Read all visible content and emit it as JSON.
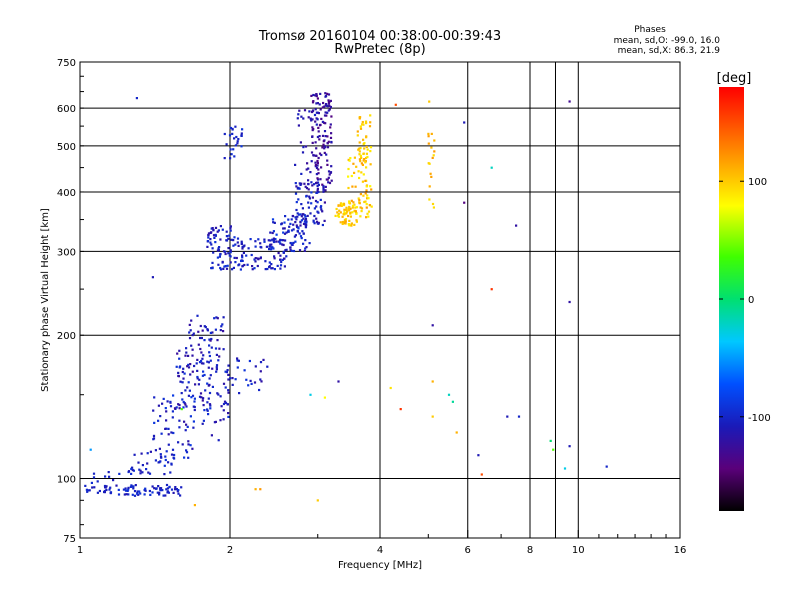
{
  "chart_data": {
    "type": "scatter",
    "title": "Tromsø 20160104 00:38:00-00:39:43",
    "subtitle": "RwPretec (8p)",
    "xlabel": "Frequency [MHz]",
    "ylabel": "Stationary phase Virtual Height [km]",
    "x_scale": "log",
    "y_scale": "log",
    "xlim": [
      1,
      16
    ],
    "ylim": [
      75,
      750
    ],
    "x_ticks": [
      1,
      2,
      4,
      6,
      8,
      10,
      16
    ],
    "x_gridlines": [
      2,
      4,
      6,
      8,
      9,
      10
    ],
    "y_ticks": [
      75,
      100,
      200,
      300,
      400,
      500,
      600,
      750
    ],
    "y_gridlines": [
      100,
      200,
      300,
      400,
      500,
      600
    ],
    "grid": true,
    "stats": {
      "heading": "Phases",
      "o_line": "mean, sd,O: -99.0, 16.0",
      "x_line": "mean, sd,X: 86.3, 21.9"
    },
    "colorbar": {
      "label": "[deg]",
      "range": [
        -180,
        180
      ],
      "ticks": [
        "100",
        "0",
        "-100"
      ],
      "tick_values": [
        100,
        0,
        -100
      ]
    },
    "clusters": [
      {
        "x_range": [
          1.0,
          1.15
        ],
        "y_range": [
          93,
          97
        ],
        "n": 18,
        "phase_range": [
          -115,
          -95
        ]
      },
      {
        "x_range": [
          1.15,
          1.6
        ],
        "y_range": [
          92,
          97
        ],
        "n": 70,
        "phase_range": [
          -115,
          -90
        ]
      },
      {
        "x_range": [
          1.05,
          1.2
        ],
        "y_range": [
          96,
          104
        ],
        "n": 10,
        "phase_range": [
          -110,
          -90
        ]
      },
      {
        "x_range": [
          1.25,
          1.55
        ],
        "y_range": [
          102,
          115
        ],
        "n": 40,
        "phase_range": [
          -115,
          -90
        ]
      },
      {
        "x_range": [
          1.4,
          1.7
        ],
        "y_range": [
          110,
          150
        ],
        "n": 60,
        "phase_range": [
          -120,
          -85
        ]
      },
      {
        "x_range": [
          1.55,
          1.85
        ],
        "y_range": [
          140,
          190
        ],
        "n": 80,
        "phase_range": [
          -125,
          -90
        ]
      },
      {
        "x_range": [
          1.65,
          1.95
        ],
        "y_range": [
          180,
          220
        ],
        "n": 45,
        "phase_range": [
          -125,
          -95
        ]
      },
      {
        "x_range": [
          1.75,
          2.0
        ],
        "y_range": [
          120,
          180
        ],
        "n": 40,
        "phase_range": [
          -120,
          -90
        ]
      },
      {
        "x_range": [
          1.95,
          2.4
        ],
        "y_range": [
          150,
          180
        ],
        "n": 30,
        "phase_range": [
          -120,
          -90
        ]
      },
      {
        "x_range": [
          1.8,
          2.05
        ],
        "y_range": [
          275,
          340
        ],
        "n": 80,
        "phase_range": [
          -120,
          -90
        ]
      },
      {
        "x_range": [
          1.95,
          2.15
        ],
        "y_range": [
          470,
          550
        ],
        "n": 25,
        "phase_range": [
          -110,
          -90
        ]
      },
      {
        "x_range": [
          2.05,
          2.6
        ],
        "y_range": [
          275,
          320
        ],
        "n": 90,
        "phase_range": [
          -120,
          -90
        ]
      },
      {
        "x_range": [
          2.4,
          2.9
        ],
        "y_range": [
          300,
          360
        ],
        "n": 90,
        "phase_range": [
          -120,
          -85
        ]
      },
      {
        "x_range": [
          2.7,
          3.1
        ],
        "y_range": [
          340,
          420
        ],
        "n": 80,
        "phase_range": [
          -125,
          -90
        ]
      },
      {
        "x_range": [
          2.9,
          3.2
        ],
        "y_range": [
          400,
          650
        ],
        "n": 130,
        "phase_range": [
          -140,
          -110
        ]
      },
      {
        "x_range": [
          2.7,
          3.0
        ],
        "y_range": [
          420,
          600
        ],
        "n": 30,
        "phase_range": [
          -125,
          -100
        ]
      },
      {
        "x_range": [
          3.25,
          3.6
        ],
        "y_range": [
          340,
          380
        ],
        "n": 60,
        "phase_range": [
          85,
          115
        ]
      },
      {
        "x_range": [
          3.45,
          3.85
        ],
        "y_range": [
          350,
          480
        ],
        "n": 70,
        "phase_range": [
          80,
          120
        ]
      },
      {
        "x_range": [
          3.6,
          3.85
        ],
        "y_range": [
          450,
          580
        ],
        "n": 40,
        "phase_range": [
          85,
          115
        ]
      },
      {
        "x_range": [
          5.0,
          5.15
        ],
        "y_range": [
          360,
          640
        ],
        "n": 18,
        "phase_range": [
          80,
          120
        ]
      }
    ],
    "scattered_points": [
      {
        "x": 1.3,
        "y": 630,
        "phase": -100
      },
      {
        "x": 1.05,
        "y": 115,
        "phase": -50
      },
      {
        "x": 1.4,
        "y": 265,
        "phase": -110
      },
      {
        "x": 2.25,
        "y": 95,
        "phase": 110
      },
      {
        "x": 2.3,
        "y": 95,
        "phase": 120
      },
      {
        "x": 2.9,
        "y": 150,
        "phase": -30
      },
      {
        "x": 3.1,
        "y": 148,
        "phase": 80
      },
      {
        "x": 3.3,
        "y": 160,
        "phase": -120
      },
      {
        "x": 3.0,
        "y": 90,
        "phase": 100
      },
      {
        "x": 4.2,
        "y": 155,
        "phase": 90
      },
      {
        "x": 4.4,
        "y": 140,
        "phase": 160
      },
      {
        "x": 4.3,
        "y": 610,
        "phase": 150
      },
      {
        "x": 5.1,
        "y": 210,
        "phase": -120
      },
      {
        "x": 5.1,
        "y": 160,
        "phase": 110
      },
      {
        "x": 5.1,
        "y": 135,
        "phase": 100
      },
      {
        "x": 5.5,
        "y": 150,
        "phase": -20
      },
      {
        "x": 5.6,
        "y": 145,
        "phase": -10
      },
      {
        "x": 5.7,
        "y": 125,
        "phase": 110
      },
      {
        "x": 5.9,
        "y": 560,
        "phase": -110
      },
      {
        "x": 5.9,
        "y": 380,
        "phase": -140
      },
      {
        "x": 6.3,
        "y": 112,
        "phase": -110
      },
      {
        "x": 6.4,
        "y": 102,
        "phase": 150
      },
      {
        "x": 6.7,
        "y": 450,
        "phase": -20
      },
      {
        "x": 6.7,
        "y": 250,
        "phase": 160
      },
      {
        "x": 7.2,
        "y": 135,
        "phase": -110
      },
      {
        "x": 7.5,
        "y": 340,
        "phase": -120
      },
      {
        "x": 7.6,
        "y": 135,
        "phase": -100
      },
      {
        "x": 8.8,
        "y": 120,
        "phase": 0
      },
      {
        "x": 8.9,
        "y": 115,
        "phase": 40
      },
      {
        "x": 9.4,
        "y": 105,
        "phase": -30
      },
      {
        "x": 9.6,
        "y": 620,
        "phase": -130
      },
      {
        "x": 9.6,
        "y": 235,
        "phase": -120
      },
      {
        "x": 9.6,
        "y": 117,
        "phase": -110
      },
      {
        "x": 11.4,
        "y": 106,
        "phase": -100
      },
      {
        "x": 1.7,
        "y": 88,
        "phase": 110
      },
      {
        "x": 1.6,
        "y": 140,
        "phase": 40
      }
    ]
  }
}
